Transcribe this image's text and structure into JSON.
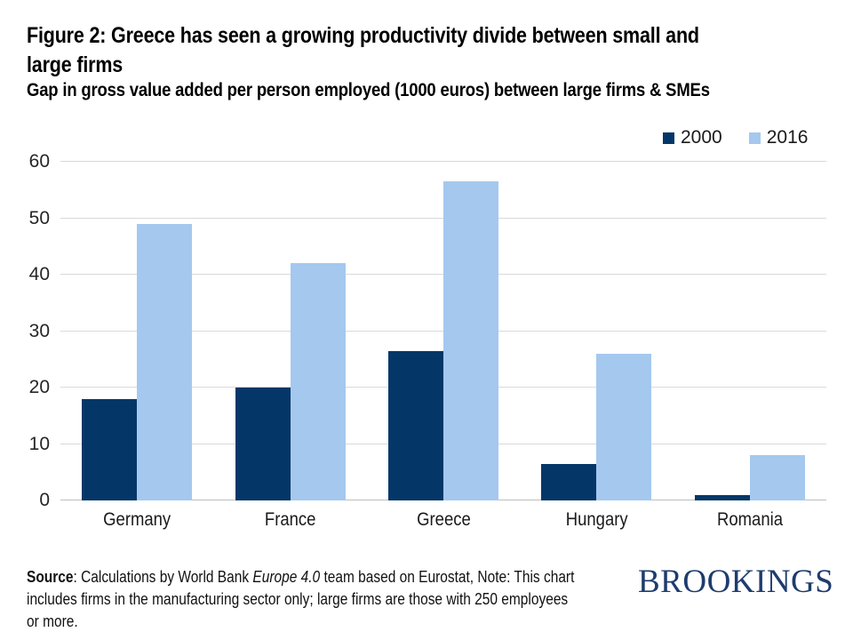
{
  "header": {
    "title_line1": "Figure 2: Greece has seen a growing productivity divide between small and",
    "title_line2": "large firms",
    "subtitle": "Gap in gross value added per person employed (1000 euros) between large firms & SMEs"
  },
  "chart_data": {
    "type": "bar",
    "title": "Figure 2: Greece has seen a growing productivity divide between small and large firms",
    "subtitle": "Gap in gross value added per person employed (1000 euros) between large firms & SMEs",
    "categories": [
      "Germany",
      "France",
      "Greece",
      "Hungary",
      "Romania"
    ],
    "series": [
      {
        "name": "2000",
        "color": "#043768",
        "values": [
          18,
          20,
          26.5,
          6.5,
          1
        ]
      },
      {
        "name": "2016",
        "color": "#a5c8ef",
        "values": [
          49,
          42,
          56.5,
          26,
          8
        ]
      }
    ],
    "ylim": [
      0,
      60
    ],
    "ytick_step": 10,
    "yticks": [
      0,
      10,
      20,
      30,
      40,
      50,
      60
    ],
    "grid": "horizontal",
    "legend_position": "top-right",
    "xlabel": "",
    "ylabel": ""
  },
  "footer": {
    "source_lines": [
      [
        {
          "text": "Source",
          "bold": true
        },
        {
          "text": ": Calculations by World Bank "
        },
        {
          "text": "Europe 4.0",
          "italic": true
        },
        {
          "text": " team based on Eurostat, Note: This chart"
        }
      ],
      [
        {
          "text": "includes firms in the manufacturing sector only; large firms are those with 250 employees"
        }
      ],
      [
        {
          "text": "or more."
        }
      ]
    ],
    "logo_text": "BROOKINGS"
  },
  "colors": {
    "series_2000": "#043768",
    "series_2016": "#a5c8ef",
    "gridline": "#d9d9d9",
    "axis_line": "#bfbfbf",
    "logo_navy": "#1e3c6e",
    "text": "#000000"
  }
}
